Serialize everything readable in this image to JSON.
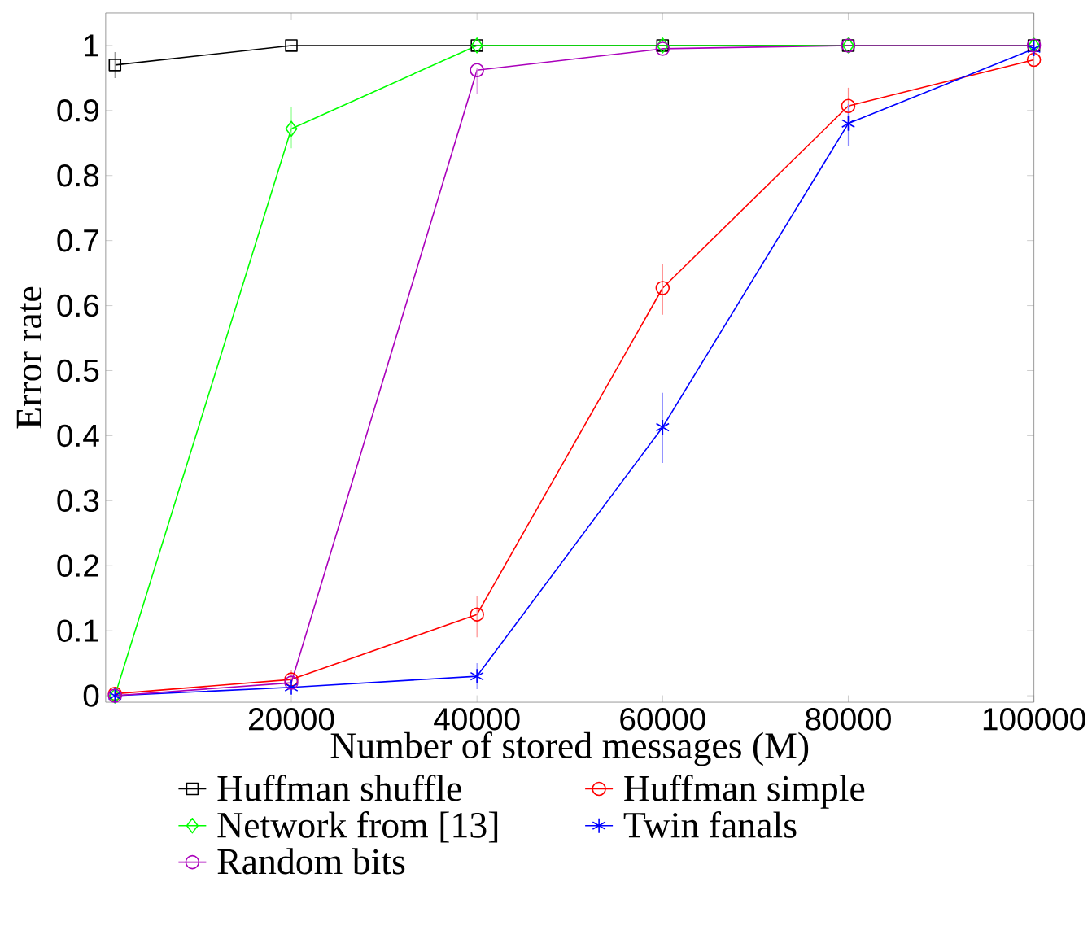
{
  "chart_data": {
    "type": "line",
    "xlabel": "Number of stored messages (M)",
    "ylabel": "Error rate",
    "xlim": [
      0,
      100000
    ],
    "xticks": [
      20000,
      40000,
      60000,
      80000,
      100000
    ],
    "ylim": [
      -0.01,
      1.05
    ],
    "yticks": [
      0,
      0.1,
      0.2,
      0.3,
      0.4,
      0.5,
      0.6,
      0.7,
      0.8,
      0.9,
      1
    ],
    "x": [
      1000,
      20000,
      40000,
      60000,
      80000,
      100000
    ],
    "legend": "bottom",
    "grid": false,
    "line_style": "solid",
    "series": [
      {
        "name": "Huffman shuffle",
        "color": "#000000",
        "marker": "square",
        "values": [
          0.97,
          1,
          1,
          1,
          1,
          1
        ],
        "errors": [
          [
            0.95,
            0.99
          ],
          null,
          null,
          null,
          null,
          null
        ]
      },
      {
        "name": "Huffman simple",
        "color": "#ff0000",
        "marker": "circle",
        "values": [
          0.003,
          0.025,
          0.125,
          0.627,
          0.907,
          0.978
        ],
        "errors": [
          null,
          [
            0.01,
            0.04
          ],
          [
            0.09,
            0.153
          ],
          [
            0.586,
            0.664
          ],
          [
            0.88,
            0.935
          ],
          [
            0.965,
            0.99
          ]
        ]
      },
      {
        "name": "Network from [13]",
        "color": "#00ff00",
        "marker": "diamond",
        "values": [
          0,
          0.872,
          1,
          1,
          1,
          1
        ],
        "errors": [
          null,
          [
            0.842,
            0.905
          ],
          null,
          null,
          null,
          null
        ]
      },
      {
        "name": "Twin fanals",
        "color": "#0000ff",
        "marker": "cross",
        "values": [
          0,
          0.013,
          0.03,
          0.413,
          0.88,
          0.995
        ],
        "errors": [
          null,
          null,
          [
            0.01,
            0.05
          ],
          [
            0.358,
            0.466
          ],
          [
            0.845,
            0.91
          ],
          null
        ]
      },
      {
        "name": "Random bits",
        "color": "#aa00bb",
        "marker": "circle",
        "values": [
          0,
          0.02,
          0.962,
          0.995,
          1,
          1
        ],
        "errors": [
          null,
          null,
          [
            0.925,
            0.965
          ],
          null,
          null,
          null
        ]
      }
    ]
  }
}
